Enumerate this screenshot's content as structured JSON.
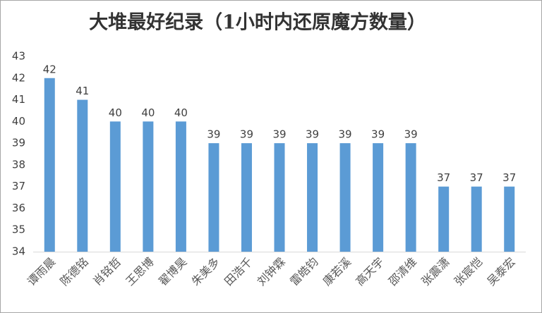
{
  "chart_data": {
    "type": "bar",
    "title": "大堆最好纪录（1小时内还原魔方数量）",
    "categories": [
      "谭雨晨",
      "陈德铭",
      "肖铭哲",
      "王思博",
      "翟博昊",
      "朱美多",
      "田浩千",
      "刘钟霖",
      "雷皓钧",
      "康若溪",
      "高天宇",
      "邵清维",
      "张震潇",
      "张宸恺",
      "吴泰宏"
    ],
    "values": [
      42,
      41,
      40,
      40,
      40,
      39,
      39,
      39,
      39,
      39,
      39,
      39,
      37,
      37,
      37
    ],
    "color": "#5b9bd5",
    "ylim": [
      34,
      43
    ],
    "yticks": [
      34,
      35,
      36,
      37,
      38,
      39,
      40,
      41,
      42,
      43
    ],
    "grid": false
  }
}
